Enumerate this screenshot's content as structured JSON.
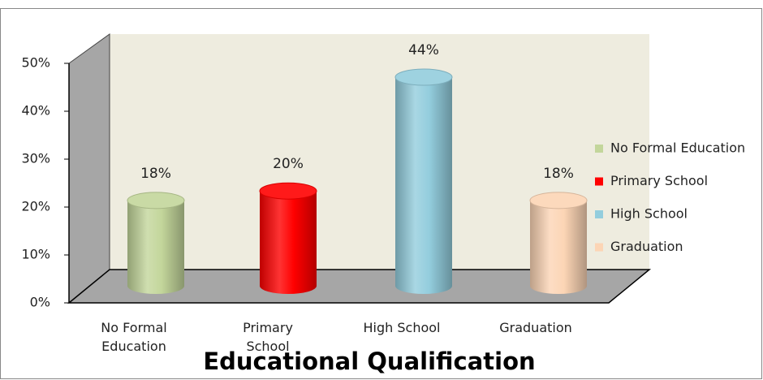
{
  "chart_data": {
    "type": "bar",
    "title": "Educational Qualification",
    "categories": [
      "No Formal Education",
      "Primary School",
      "High School",
      "Graduation"
    ],
    "values": [
      18,
      20,
      44,
      18
    ],
    "value_labels": [
      "18%",
      "20%",
      "44%",
      "18%"
    ],
    "colors": [
      "#c3d69b",
      "#ff0000",
      "#93cddd",
      "#fcd5b5"
    ],
    "ylim": [
      0,
      50
    ],
    "yticks": [
      {
        "value": 0,
        "label": "0%"
      },
      {
        "value": 10,
        "label": "10%"
      },
      {
        "value": 20,
        "label": "20%"
      },
      {
        "value": 30,
        "label": "30%"
      },
      {
        "value": 40,
        "label": "40%"
      },
      {
        "value": 50,
        "label": "50%"
      }
    ],
    "legend": "right"
  }
}
